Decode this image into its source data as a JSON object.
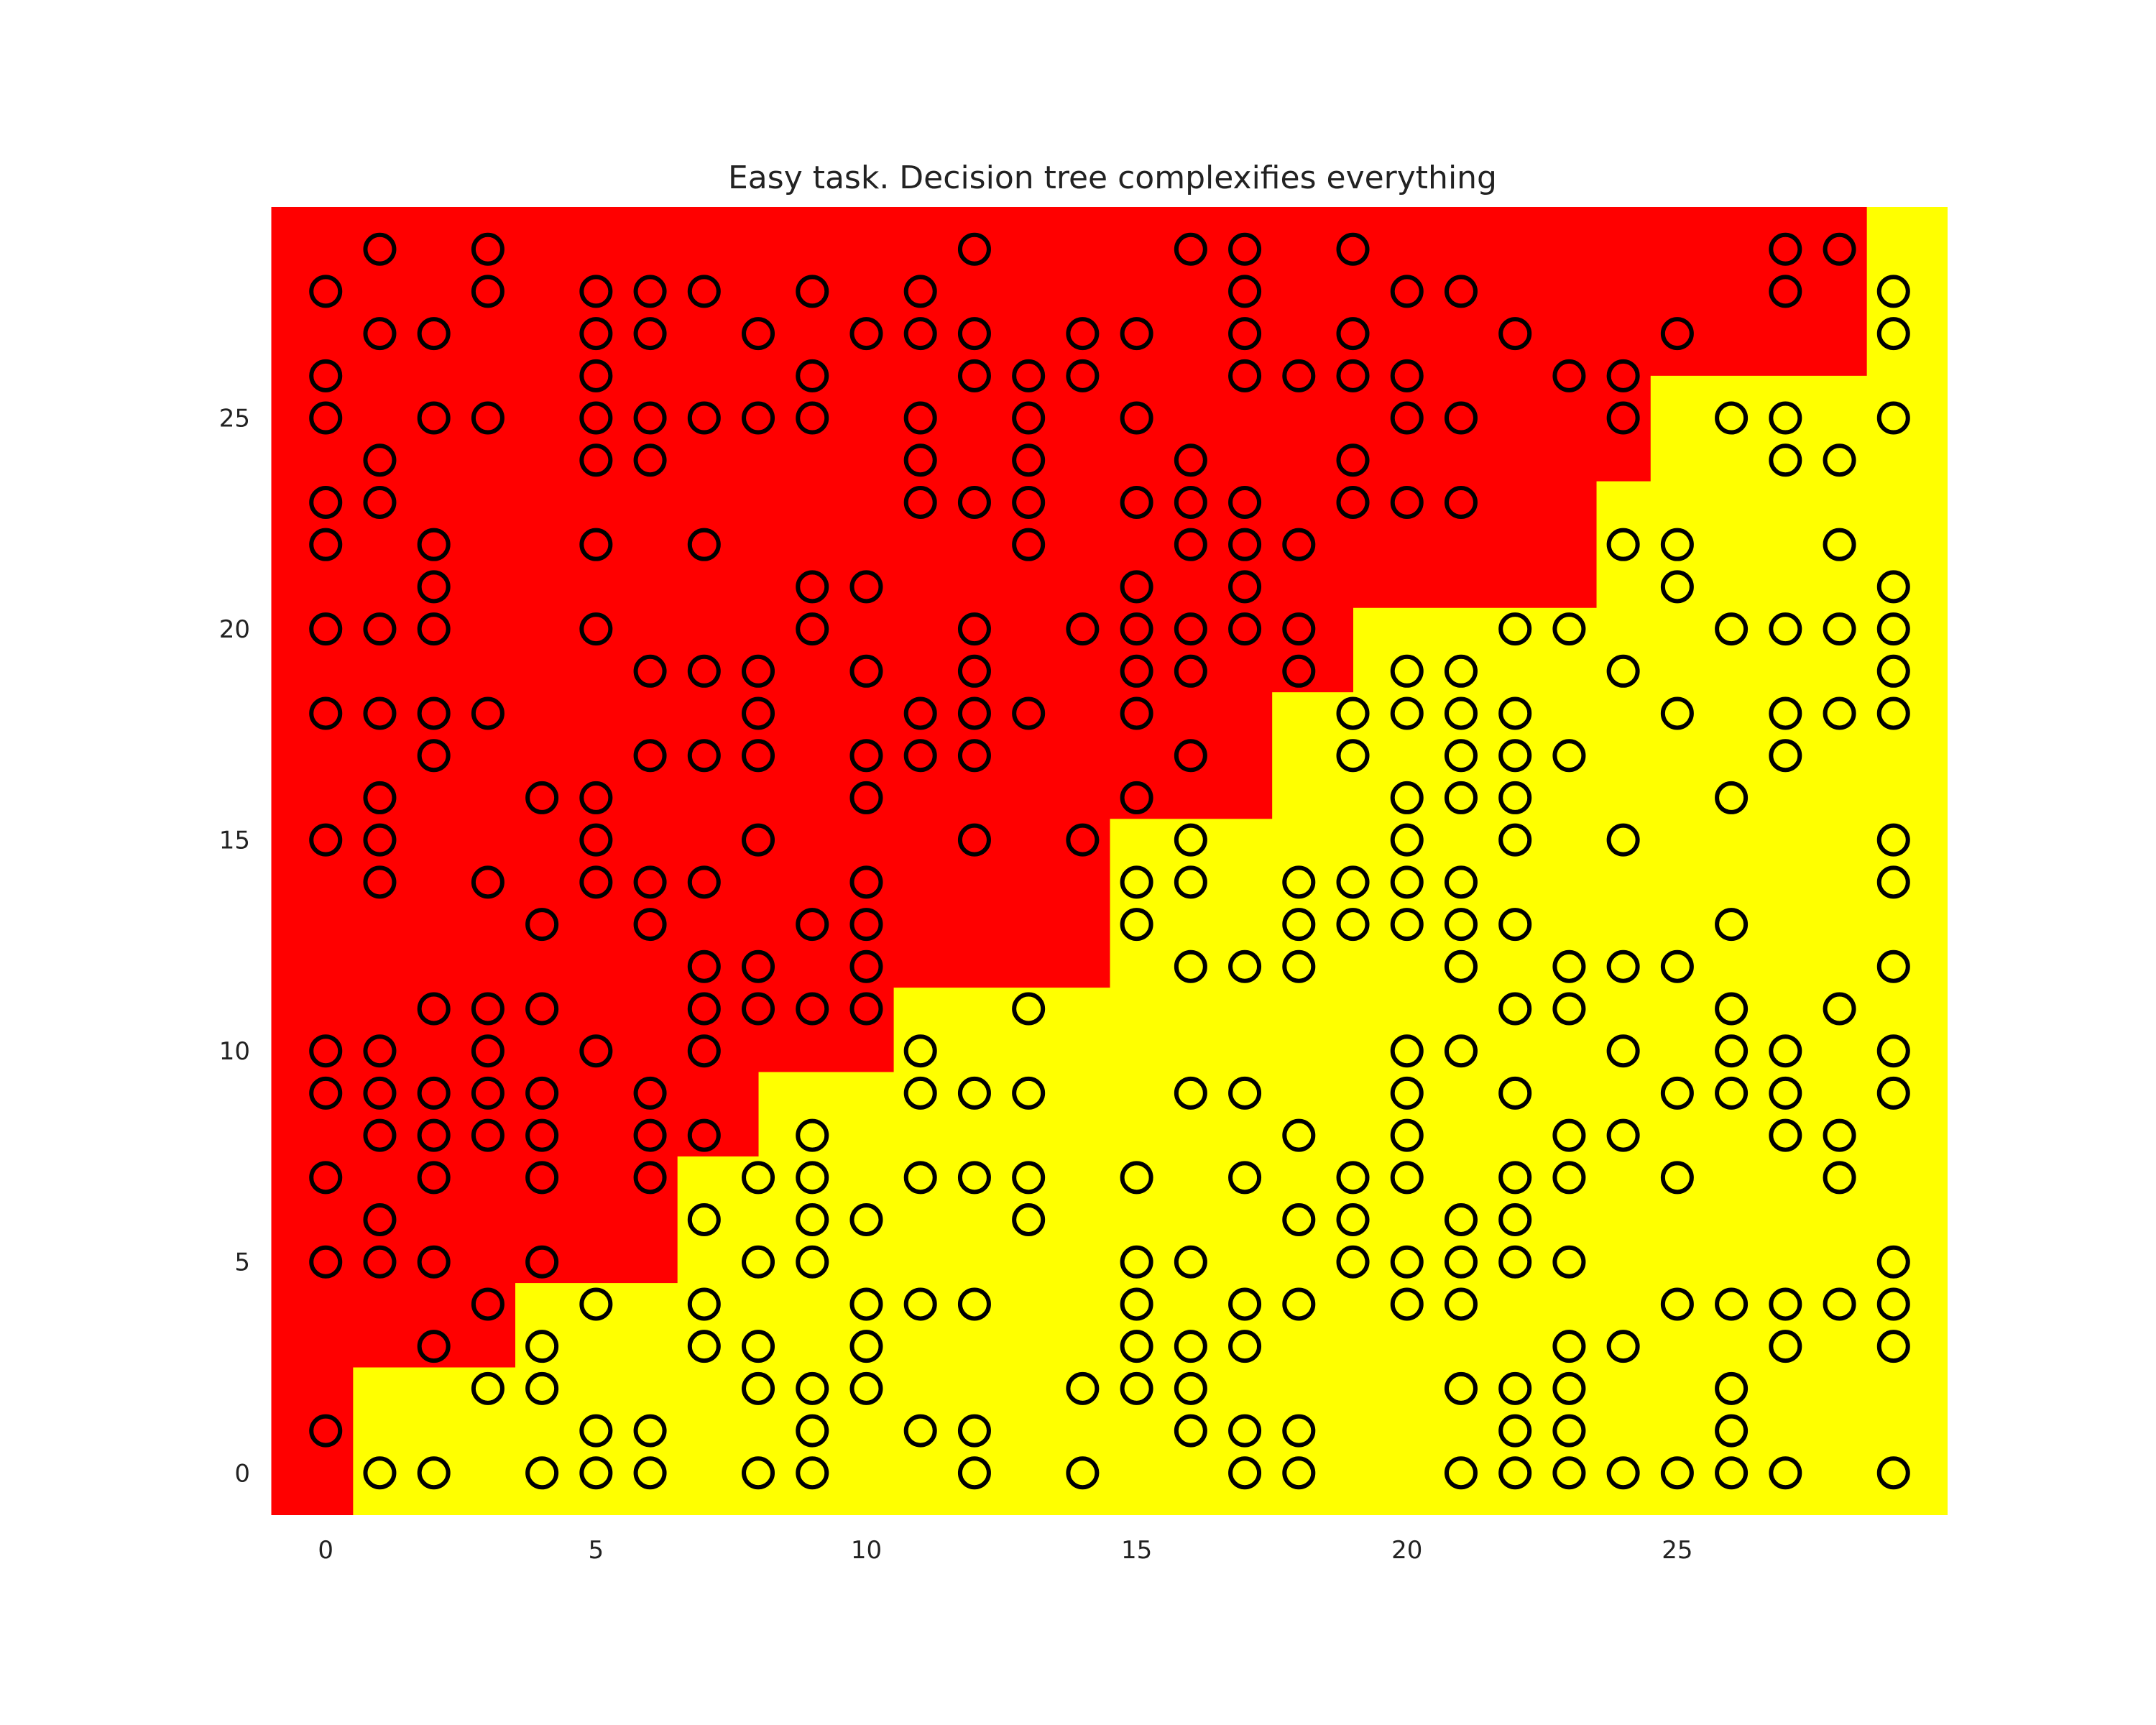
{
  "chart_data": {
    "type": "scatter",
    "title": "Easy task. Decision tree complexifies everything",
    "xlabel": "",
    "ylabel": "",
    "xlim": [
      -1,
      30
    ],
    "ylim": [
      -1,
      30
    ],
    "grid": false,
    "legend": "none",
    "x_ticks": [
      0,
      5,
      10,
      15,
      20,
      25
    ],
    "y_ticks": [
      0,
      5,
      10,
      15,
      20,
      25
    ],
    "colors": {
      "class_0_region": "#ff0000",
      "class_1_region": "#ffff00",
      "marker_edge": "#000000"
    },
    "decision_boundary": {
      "description": "class 0 region where y > threshold for x in [x_start, x_end]",
      "steps": [
        {
          "x_start": -1,
          "x_end": 0.5,
          "y_threshold": -1
        },
        {
          "x_start": 0.5,
          "x_end": 3.5,
          "y_threshold": 2.5
        },
        {
          "x_start": 3.5,
          "x_end": 6.5,
          "y_threshold": 4.5
        },
        {
          "x_start": 6.5,
          "x_end": 8.0,
          "y_threshold": 7.5
        },
        {
          "x_start": 8.0,
          "x_end": 10.5,
          "y_threshold": 9.5
        },
        {
          "x_start": 10.5,
          "x_end": 14.5,
          "y_threshold": 11.5
        },
        {
          "x_start": 14.5,
          "x_end": 17.5,
          "y_threshold": 15.5
        },
        {
          "x_start": 17.5,
          "x_end": 19.0,
          "y_threshold": 18.5
        },
        {
          "x_start": 19.0,
          "x_end": 23.5,
          "y_threshold": 20.5
        },
        {
          "x_start": 23.5,
          "x_end": 24.5,
          "y_threshold": 23.5
        },
        {
          "x_start": 24.5,
          "x_end": 28.5,
          "y_threshold": 26.0
        },
        {
          "x_start": 28.5,
          "x_end": 30,
          "y_threshold": 30
        }
      ]
    },
    "points": [
      [
        0,
        28
      ],
      [
        0,
        26
      ],
      [
        0,
        25
      ],
      [
        0,
        23
      ],
      [
        0,
        22
      ],
      [
        0,
        20
      ],
      [
        0,
        18
      ],
      [
        0,
        15
      ],
      [
        0,
        10
      ],
      [
        0,
        9
      ],
      [
        0,
        7
      ],
      [
        0,
        5
      ],
      [
        0,
        1
      ],
      [
        1,
        29
      ],
      [
        1,
        27
      ],
      [
        1,
        24
      ],
      [
        1,
        23
      ],
      [
        1,
        20
      ],
      [
        1,
        18
      ],
      [
        1,
        16
      ],
      [
        1,
        15
      ],
      [
        1,
        14
      ],
      [
        1,
        10
      ],
      [
        1,
        9
      ],
      [
        1,
        8
      ],
      [
        1,
        6
      ],
      [
        1,
        5
      ],
      [
        1,
        0
      ],
      [
        2,
        27
      ],
      [
        2,
        25
      ],
      [
        2,
        22
      ],
      [
        2,
        21
      ],
      [
        2,
        20
      ],
      [
        2,
        18
      ],
      [
        2,
        17
      ],
      [
        2,
        11
      ],
      [
        2,
        9
      ],
      [
        2,
        8
      ],
      [
        2,
        7
      ],
      [
        2,
        5
      ],
      [
        2,
        3
      ],
      [
        2,
        0
      ],
      [
        3,
        29
      ],
      [
        3,
        28
      ],
      [
        3,
        25
      ],
      [
        3,
        18
      ],
      [
        3,
        14
      ],
      [
        3,
        11
      ],
      [
        3,
        10
      ],
      [
        3,
        9
      ],
      [
        3,
        8
      ],
      [
        3,
        4
      ],
      [
        3,
        2
      ],
      [
        4,
        16
      ],
      [
        4,
        13
      ],
      [
        4,
        11
      ],
      [
        4,
        9
      ],
      [
        4,
        8
      ],
      [
        4,
        7
      ],
      [
        4,
        5
      ],
      [
        4,
        3
      ],
      [
        4,
        2
      ],
      [
        4,
        0
      ],
      [
        5,
        28
      ],
      [
        5,
        27
      ],
      [
        5,
        26
      ],
      [
        5,
        25
      ],
      [
        5,
        24
      ],
      [
        5,
        22
      ],
      [
        5,
        20
      ],
      [
        5,
        16
      ],
      [
        5,
        15
      ],
      [
        5,
        14
      ],
      [
        5,
        10
      ],
      [
        5,
        4
      ],
      [
        5,
        1
      ],
      [
        5,
        0
      ],
      [
        6,
        28
      ],
      [
        6,
        27
      ],
      [
        6,
        25
      ],
      [
        6,
        24
      ],
      [
        6,
        19
      ],
      [
        6,
        17
      ],
      [
        6,
        14
      ],
      [
        6,
        13
      ],
      [
        6,
        9
      ],
      [
        6,
        8
      ],
      [
        6,
        7
      ],
      [
        6,
        1
      ],
      [
        6,
        0
      ],
      [
        7,
        28
      ],
      [
        7,
        25
      ],
      [
        7,
        22
      ],
      [
        7,
        19
      ],
      [
        7,
        17
      ],
      [
        7,
        14
      ],
      [
        7,
        12
      ],
      [
        7,
        11
      ],
      [
        7,
        10
      ],
      [
        7,
        8
      ],
      [
        7,
        6
      ],
      [
        7,
        4
      ],
      [
        7,
        3
      ],
      [
        8,
        27
      ],
      [
        8,
        25
      ],
      [
        8,
        19
      ],
      [
        8,
        18
      ],
      [
        8,
        17
      ],
      [
        8,
        15
      ],
      [
        8,
        12
      ],
      [
        8,
        11
      ],
      [
        8,
        7
      ],
      [
        8,
        5
      ],
      [
        8,
        3
      ],
      [
        8,
        2
      ],
      [
        8,
        0
      ],
      [
        9,
        28
      ],
      [
        9,
        26
      ],
      [
        9,
        25
      ],
      [
        9,
        21
      ],
      [
        9,
        20
      ],
      [
        9,
        13
      ],
      [
        9,
        11
      ],
      [
        9,
        8
      ],
      [
        9,
        7
      ],
      [
        9,
        6
      ],
      [
        9,
        5
      ],
      [
        9,
        2
      ],
      [
        9,
        1
      ],
      [
        9,
        0
      ],
      [
        10,
        27
      ],
      [
        10,
        21
      ],
      [
        10,
        19
      ],
      [
        10,
        17
      ],
      [
        10,
        16
      ],
      [
        10,
        14
      ],
      [
        10,
        13
      ],
      [
        10,
        12
      ],
      [
        10,
        11
      ],
      [
        10,
        6
      ],
      [
        10,
        4
      ],
      [
        10,
        3
      ],
      [
        10,
        2
      ],
      [
        11,
        28
      ],
      [
        11,
        27
      ],
      [
        11,
        25
      ],
      [
        11,
        24
      ],
      [
        11,
        23
      ],
      [
        11,
        18
      ],
      [
        11,
        17
      ],
      [
        11,
        10
      ],
      [
        11,
        9
      ],
      [
        11,
        7
      ],
      [
        11,
        4
      ],
      [
        11,
        1
      ],
      [
        12,
        29
      ],
      [
        12,
        27
      ],
      [
        12,
        26
      ],
      [
        12,
        23
      ],
      [
        12,
        20
      ],
      [
        12,
        19
      ],
      [
        12,
        18
      ],
      [
        12,
        17
      ],
      [
        12,
        15
      ],
      [
        12,
        9
      ],
      [
        12,
        7
      ],
      [
        12,
        4
      ],
      [
        12,
        1
      ],
      [
        12,
        0
      ],
      [
        13,
        26
      ],
      [
        13,
        25
      ],
      [
        13,
        24
      ],
      [
        13,
        23
      ],
      [
        13,
        22
      ],
      [
        13,
        18
      ],
      [
        13,
        11
      ],
      [
        13,
        9
      ],
      [
        13,
        7
      ],
      [
        13,
        6
      ],
      [
        14,
        27
      ],
      [
        14,
        26
      ],
      [
        14,
        20
      ],
      [
        14,
        15
      ],
      [
        14,
        2
      ],
      [
        14,
        0
      ],
      [
        15,
        27
      ],
      [
        15,
        25
      ],
      [
        15,
        23
      ],
      [
        15,
        21
      ],
      [
        15,
        20
      ],
      [
        15,
        19
      ],
      [
        15,
        18
      ],
      [
        15,
        16
      ],
      [
        15,
        14
      ],
      [
        15,
        13
      ],
      [
        15,
        7
      ],
      [
        15,
        5
      ],
      [
        15,
        4
      ],
      [
        15,
        3
      ],
      [
        15,
        2
      ],
      [
        16,
        29
      ],
      [
        16,
        24
      ],
      [
        16,
        23
      ],
      [
        16,
        22
      ],
      [
        16,
        20
      ],
      [
        16,
        19
      ],
      [
        16,
        17
      ],
      [
        16,
        15
      ],
      [
        16,
        14
      ],
      [
        16,
        12
      ],
      [
        16,
        9
      ],
      [
        16,
        5
      ],
      [
        16,
        3
      ],
      [
        16,
        2
      ],
      [
        16,
        1
      ],
      [
        17,
        29
      ],
      [
        17,
        28
      ],
      [
        17,
        27
      ],
      [
        17,
        26
      ],
      [
        17,
        23
      ],
      [
        17,
        22
      ],
      [
        17,
        21
      ],
      [
        17,
        20
      ],
      [
        17,
        12
      ],
      [
        17,
        9
      ],
      [
        17,
        7
      ],
      [
        17,
        4
      ],
      [
        17,
        3
      ],
      [
        17,
        1
      ],
      [
        17,
        0
      ],
      [
        18,
        26
      ],
      [
        18,
        22
      ],
      [
        18,
        20
      ],
      [
        18,
        19
      ],
      [
        18,
        14
      ],
      [
        18,
        13
      ],
      [
        18,
        12
      ],
      [
        18,
        8
      ],
      [
        18,
        6
      ],
      [
        18,
        4
      ],
      [
        18,
        1
      ],
      [
        18,
        0
      ],
      [
        19,
        29
      ],
      [
        19,
        27
      ],
      [
        19,
        26
      ],
      [
        19,
        24
      ],
      [
        19,
        23
      ],
      [
        19,
        18
      ],
      [
        19,
        17
      ],
      [
        19,
        14
      ],
      [
        19,
        13
      ],
      [
        19,
        7
      ],
      [
        19,
        6
      ],
      [
        19,
        5
      ],
      [
        20,
        28
      ],
      [
        20,
        26
      ],
      [
        20,
        25
      ],
      [
        20,
        23
      ],
      [
        20,
        19
      ],
      [
        20,
        18
      ],
      [
        20,
        16
      ],
      [
        20,
        15
      ],
      [
        20,
        14
      ],
      [
        20,
        13
      ],
      [
        20,
        10
      ],
      [
        20,
        9
      ],
      [
        20,
        8
      ],
      [
        20,
        7
      ],
      [
        20,
        5
      ],
      [
        20,
        4
      ],
      [
        21,
        28
      ],
      [
        21,
        25
      ],
      [
        21,
        23
      ],
      [
        21,
        19
      ],
      [
        21,
        18
      ],
      [
        21,
        17
      ],
      [
        21,
        16
      ],
      [
        21,
        14
      ],
      [
        21,
        13
      ],
      [
        21,
        12
      ],
      [
        21,
        10
      ],
      [
        21,
        6
      ],
      [
        21,
        5
      ],
      [
        21,
        4
      ],
      [
        21,
        2
      ],
      [
        21,
        0
      ],
      [
        22,
        27
      ],
      [
        22,
        20
      ],
      [
        22,
        18
      ],
      [
        22,
        17
      ],
      [
        22,
        16
      ],
      [
        22,
        15
      ],
      [
        22,
        13
      ],
      [
        22,
        11
      ],
      [
        22,
        9
      ],
      [
        22,
        7
      ],
      [
        22,
        6
      ],
      [
        22,
        5
      ],
      [
        22,
        2
      ],
      [
        22,
        1
      ],
      [
        22,
        0
      ],
      [
        23,
        26
      ],
      [
        23,
        20
      ],
      [
        23,
        17
      ],
      [
        23,
        12
      ],
      [
        23,
        11
      ],
      [
        23,
        8
      ],
      [
        23,
        7
      ],
      [
        23,
        5
      ],
      [
        23,
        3
      ],
      [
        23,
        2
      ],
      [
        23,
        1
      ],
      [
        23,
        0
      ],
      [
        24,
        26
      ],
      [
        24,
        25
      ],
      [
        24,
        22
      ],
      [
        24,
        19
      ],
      [
        24,
        15
      ],
      [
        24,
        12
      ],
      [
        24,
        10
      ],
      [
        24,
        8
      ],
      [
        24,
        3
      ],
      [
        24,
        0
      ],
      [
        25,
        27
      ],
      [
        25,
        22
      ],
      [
        25,
        21
      ],
      [
        25,
        18
      ],
      [
        25,
        12
      ],
      [
        25,
        9
      ],
      [
        25,
        7
      ],
      [
        25,
        4
      ],
      [
        25,
        0
      ],
      [
        26,
        25
      ],
      [
        26,
        20
      ],
      [
        26,
        16
      ],
      [
        26,
        13
      ],
      [
        26,
        11
      ],
      [
        26,
        10
      ],
      [
        26,
        9
      ],
      [
        26,
        4
      ],
      [
        26,
        2
      ],
      [
        26,
        1
      ],
      [
        26,
        0
      ],
      [
        27,
        29
      ],
      [
        27,
        28
      ],
      [
        27,
        25
      ],
      [
        27,
        24
      ],
      [
        27,
        20
      ],
      [
        27,
        18
      ],
      [
        27,
        17
      ],
      [
        27,
        10
      ],
      [
        27,
        9
      ],
      [
        27,
        8
      ],
      [
        27,
        4
      ],
      [
        27,
        3
      ],
      [
        27,
        0
      ],
      [
        28,
        29
      ],
      [
        28,
        24
      ],
      [
        28,
        22
      ],
      [
        28,
        20
      ],
      [
        28,
        18
      ],
      [
        28,
        11
      ],
      [
        28,
        8
      ],
      [
        28,
        7
      ],
      [
        28,
        4
      ],
      [
        29,
        28
      ],
      [
        29,
        27
      ],
      [
        29,
        25
      ],
      [
        29,
        21
      ],
      [
        29,
        20
      ],
      [
        29,
        19
      ],
      [
        29,
        18
      ],
      [
        29,
        15
      ],
      [
        29,
        14
      ],
      [
        29,
        12
      ],
      [
        29,
        10
      ],
      [
        29,
        9
      ],
      [
        29,
        5
      ],
      [
        29,
        4
      ],
      [
        29,
        3
      ],
      [
        29,
        0
      ]
    ]
  }
}
